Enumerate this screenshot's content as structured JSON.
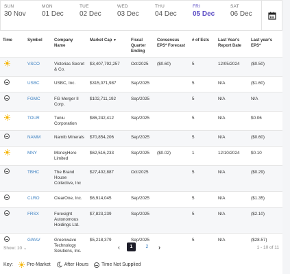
{
  "days": [
    {
      "dow": "SUN",
      "date": "30 Nov",
      "active": false
    },
    {
      "dow": "MON",
      "date": "01 Dec",
      "active": false
    },
    {
      "dow": "TUE",
      "date": "02 Dec",
      "active": false
    },
    {
      "dow": "WED",
      "date": "03 Dec",
      "active": false
    },
    {
      "dow": "THU",
      "date": "04 Dec",
      "active": false
    },
    {
      "dow": "FRI",
      "date": "05 Dec",
      "active": true
    },
    {
      "dow": "SAT",
      "date": "06 Dec",
      "active": false
    }
  ],
  "calendar_icon": "calendar-icon",
  "table": {
    "headers": {
      "time": "Time",
      "symbol": "Symbol",
      "company": "Company Name",
      "market_cap": "Market Cap",
      "sort_arrow": "▼",
      "fiscal": "Fiscal Quarter Ending",
      "consensus": "Consensus EPS* Forecast",
      "num_ests": "# of Ests",
      "last_report": "Last Year's Report Date",
      "last_eps": "Last year's EPS*"
    },
    "rows": [
      {
        "time": "pre-market",
        "symbol": "VSCO",
        "company": "Victorias Secret & Co.",
        "market_cap": "$3,407,792,257",
        "fiscal": "Oct/2025",
        "consensus": "($0.60)",
        "num_ests": "5",
        "last_report": "12/05/2024",
        "last_eps": "($0.50)"
      },
      {
        "time": "not-supplied",
        "symbol": "USBC",
        "company": "USBC, Inc.",
        "market_cap": "$315,071,987",
        "fiscal": "Sep/2025",
        "consensus": "",
        "num_ests": "5",
        "last_report": "N/A",
        "last_eps": "($1.60)"
      },
      {
        "time": "not-supplied",
        "symbol": "FGMC",
        "company": "FG Merger II Corp.",
        "market_cap": "$102,711,192",
        "fiscal": "Sep/2025",
        "consensus": "",
        "num_ests": "5",
        "last_report": "N/A",
        "last_eps": "N/A"
      },
      {
        "time": "pre-market",
        "symbol": "TOUR",
        "company": "Tuniu Corporation",
        "market_cap": "$86,242,412",
        "fiscal": "Sep/2025",
        "consensus": "",
        "num_ests": "5",
        "last_report": "N/A",
        "last_eps": "$0.06"
      },
      {
        "time": "not-supplied",
        "symbol": "NAMM",
        "company": "Namib Minerals",
        "market_cap": "$70,854,206",
        "fiscal": "Sep/2025",
        "consensus": "",
        "num_ests": "5",
        "last_report": "N/A",
        "last_eps": "($0.60)"
      },
      {
        "time": "pre-market",
        "symbol": "MNY",
        "company": "MoneyHero Limited",
        "market_cap": "$62,516,233",
        "fiscal": "Sep/2025",
        "consensus": "($0.02)",
        "num_ests": "1",
        "last_report": "12/10/2024",
        "last_eps": "$0.10"
      },
      {
        "time": "not-supplied",
        "symbol": "TBHC",
        "company": "The Brand House Collective, Inc",
        "market_cap": "$27,402,887",
        "fiscal": "Oct/2025",
        "consensus": "",
        "num_ests": "5",
        "last_report": "N/A",
        "last_eps": "($0.29)"
      },
      {
        "time": "not-supplied",
        "symbol": "CLRO",
        "company": "ClearOne, Inc.",
        "market_cap": "$6,914,045",
        "fiscal": "Sep/2025",
        "consensus": "",
        "num_ests": "5",
        "last_report": "N/A",
        "last_eps": "($1.35)"
      },
      {
        "time": "not-supplied",
        "symbol": "FRSX",
        "company": "Foresight Autonomous Holdings Ltd.",
        "market_cap": "$7,823,239",
        "fiscal": "Sep/2025",
        "consensus": "",
        "num_ests": "5",
        "last_report": "N/A",
        "last_eps": "($2.10)"
      },
      {
        "time": "not-supplied",
        "symbol": "GWAV",
        "company": "Greenwave Technology Solutions, Inc.",
        "market_cap": "$5,218,379",
        "fiscal": "Sep/2025",
        "consensus": "",
        "num_ests": "5",
        "last_report": "N/A",
        "last_eps": "($28.57)"
      }
    ]
  },
  "footer": {
    "show_label": "Show:",
    "show_value": "10",
    "pages": [
      "1",
      "2"
    ],
    "current_page": "1",
    "count": "1 - 10 of 11"
  },
  "key": {
    "label": "Key:",
    "pre_market": "Pre-Market",
    "after_hours": "After Hours",
    "not_supplied": "Time Not Supplied"
  },
  "colors": {
    "accent": "#5b4cc4",
    "link": "#3a7fc1",
    "sun": "#f5b400",
    "pager_active": "#1d1d29"
  }
}
